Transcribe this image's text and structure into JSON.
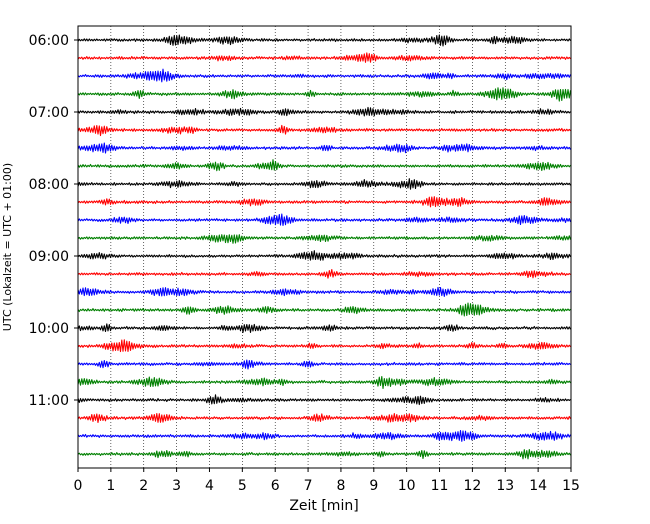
{
  "chart_data": {
    "type": "line",
    "title": "",
    "xlabel": "Zeit  [min]",
    "ylabel": "UTC (Lokalzeit = UTC + 01:00)",
    "xlim": [
      0,
      15
    ],
    "xticks": [
      0,
      1,
      2,
      3,
      4,
      5,
      6,
      7,
      8,
      9,
      10,
      11,
      12,
      13,
      14,
      15
    ],
    "y_tick_labels": [
      "06:00",
      "07:00",
      "08:00",
      "09:00",
      "10:00",
      "11:00"
    ],
    "trace_interval_minutes": 15,
    "first_trace_start": "06:00",
    "last_trace_start": "11:45",
    "trace_count": 24,
    "trace_colors": [
      "#000000",
      "#ff0000",
      "#0000ff",
      "#008000"
    ],
    "grid": {
      "vertical": true,
      "style": "dotted"
    },
    "legend": "none"
  }
}
